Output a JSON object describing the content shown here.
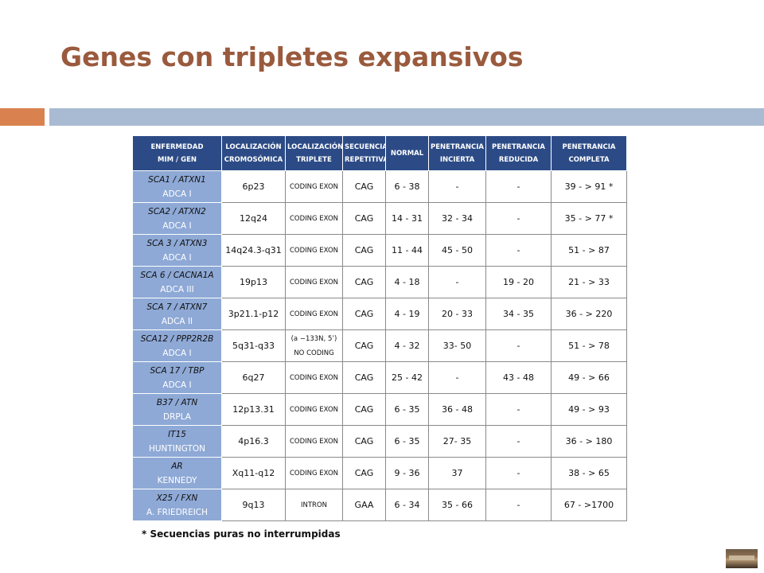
{
  "slide": {
    "title": "Genes con tripletes expansivos",
    "footnote": "* Secuencias puras no interrumpidas"
  },
  "table": {
    "headers": [
      [
        "ENFERMEDAD",
        "MIM / GEN"
      ],
      [
        "LOCALIZACIÓN",
        "CROMOSÓMICA"
      ],
      [
        "LOCALIZACIÓN",
        "TRIPLETE"
      ],
      [
        "SECUENCIA",
        "REPETITIVA"
      ],
      [
        "NORMAL"
      ],
      [
        "PENETRANCIA",
        "INCIERTA"
      ],
      [
        "PENETRANCIA",
        "REDUCIDA"
      ],
      [
        "PENETRANCIA",
        "COMPLETA"
      ]
    ],
    "rows": [
      {
        "name": "SCA1 / ATXN1",
        "sub": "ADCA I",
        "loc": "6p23",
        "triplet": [
          "CODING EXON"
        ],
        "seq": "CAG",
        "normal": "6 - 38",
        "incierta": "-",
        "reducida": "-",
        "completa": "39 - > 91 *"
      },
      {
        "name": "SCA2 / ATXN2",
        "sub": "ADCA I",
        "loc": "12q24",
        "triplet": [
          "CODING EXON"
        ],
        "seq": "CAG",
        "normal": "14 - 31",
        "incierta": "32 - 34",
        "reducida": "-",
        "completa": "35 - > 77 *"
      },
      {
        "name": "SCA 3 / ATXN3",
        "sub": "ADCA I",
        "loc": "14q24.3-q31",
        "triplet": [
          "CODING EXON"
        ],
        "seq": "CAG",
        "normal": "11 - 44",
        "incierta": "45 - 50",
        "reducida": "-",
        "completa": "51 - > 87"
      },
      {
        "name": "SCA 6 / CACNA1A",
        "sub": "ADCA III",
        "loc": "19p13",
        "triplet": [
          "CODING EXON"
        ],
        "seq": "CAG",
        "normal": "4 - 18",
        "incierta": "-",
        "reducida": "19 - 20",
        "completa": "21 - > 33"
      },
      {
        "name": "SCA 7 / ATXN7",
        "sub": "ADCA II",
        "loc": "3p21.1-p12",
        "triplet": [
          "CODING EXON"
        ],
        "seq": "CAG",
        "normal": "4 - 19",
        "incierta": "20 - 33",
        "reducida": "34 - 35",
        "completa": "36 - > 220"
      },
      {
        "name": "SCA12 / PPP2R2B",
        "sub": "ADCA I",
        "loc": "5q31-q33",
        "triplet": [
          "(a −133N, 5’)",
          "NO CODING"
        ],
        "seq": "CAG",
        "normal": "4 - 32",
        "incierta": "33- 50",
        "reducida": "-",
        "completa": "51 - > 78"
      },
      {
        "name": "SCA 17 / TBP",
        "sub": "ADCA I",
        "loc": "6q27",
        "triplet": [
          "CODING EXON"
        ],
        "seq": "CAG",
        "normal": "25 - 42",
        "incierta": "-",
        "reducida": "43 - 48",
        "completa": "49 - > 66"
      },
      {
        "name": "B37 / ATN",
        "sub": "DRPLA",
        "loc": "12p13.31",
        "triplet": [
          "CODING EXON"
        ],
        "seq": "CAG",
        "normal": "6 - 35",
        "incierta": "36 - 48",
        "reducida": "-",
        "completa": "49 - > 93"
      },
      {
        "name": "IT15",
        "sub": "HUNTINGTON",
        "loc": "4p16.3",
        "triplet": [
          "CODING EXON"
        ],
        "seq": "CAG",
        "normal": "6 - 35",
        "incierta": "27- 35",
        "reducida": "-",
        "completa": "36 - > 180"
      },
      {
        "name": "AR",
        "sub": "KENNEDY",
        "loc": "Xq11-q12",
        "triplet": [
          "CODING EXON"
        ],
        "seq": "CAG",
        "normal": "9 - 36",
        "incierta": "37",
        "reducida": "-",
        "completa": "38 - > 65"
      },
      {
        "name": "X25 / FXN",
        "sub": "A. FRIEDREICH",
        "loc": "9q13",
        "triplet": [
          "INTRON"
        ],
        "seq": "GAA",
        "normal": "6 - 34",
        "incierta": "35 - 66",
        "reducida": "-",
        "completa": "67 - >1700"
      }
    ]
  },
  "colors": {
    "title": "#9a5a3d",
    "header_bg": "#2c4b86",
    "disease_bg": "#8ea9d6",
    "bar_orange": "#d9824f",
    "bar_blue": "#a9bbd2"
  }
}
